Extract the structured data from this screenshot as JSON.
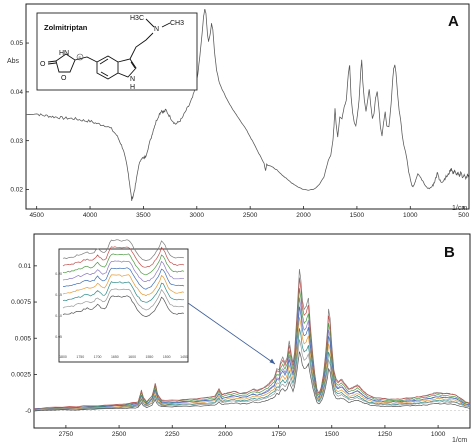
{
  "chart_data": [
    {
      "panel_label": "A",
      "type": "line",
      "ylabel": "Abs",
      "x_unit": "1/cm",
      "x_reversed": true,
      "xlim": [
        4600,
        450
      ],
      "ylim": [
        0.016,
        0.058
      ],
      "x_ticks": [
        4500,
        4000,
        3500,
        3000,
        2500,
        2000,
        1500,
        1000,
        500
      ],
      "y_ticks": [
        0.02,
        0.03,
        0.04,
        0.05
      ],
      "y_tick_labels": [
        "0.02",
        "0.03",
        "0.04",
        "0.05"
      ],
      "inset": {
        "compound_name": "Zolmitriptan",
        "atom_labels": [
          "H3C",
          "N",
          "CH3",
          "O",
          "HN",
          "O",
          "N",
          "H",
          "S"
        ]
      },
      "series": [
        {
          "color": "#555555",
          "points": [
            [
              4600,
              0.0353
            ],
            [
              4500,
              0.0355
            ],
            [
              4450,
              0.0352
            ],
            [
              4400,
              0.0351
            ],
            [
              4350,
              0.0349
            ],
            [
              4300,
              0.0348
            ],
            [
              4250,
              0.0346
            ],
            [
              4200,
              0.0346
            ],
            [
              4150,
              0.0345
            ],
            [
              4100,
              0.0343
            ],
            [
              4050,
              0.0341
            ],
            [
              4000,
              0.034
            ],
            [
              3950,
              0.0336
            ],
            [
              3900,
              0.0333
            ],
            [
              3850,
              0.0331
            ],
            [
              3800,
              0.0324
            ],
            [
              3750,
              0.0311
            ],
            [
              3720,
              0.0298
            ],
            [
              3690,
              0.0283
            ],
            [
              3660,
              0.0254
            ],
            [
              3640,
              0.023
            ],
            [
              3625,
              0.0205
            ],
            [
              3610,
              0.0178
            ],
            [
              3590,
              0.0192
            ],
            [
              3570,
              0.0214
            ],
            [
              3550,
              0.0243
            ],
            [
              3520,
              0.0265
            ],
            [
              3500,
              0.0263
            ],
            [
              3480,
              0.0268
            ],
            [
              3450,
              0.029
            ],
            [
              3420,
              0.0312
            ],
            [
              3400,
              0.0328
            ],
            [
              3380,
              0.034
            ],
            [
              3350,
              0.0355
            ],
            [
              3330,
              0.0362
            ],
            [
              3310,
              0.0358
            ],
            [
              3290,
              0.0363
            ],
            [
              3260,
              0.0352
            ],
            [
              3230,
              0.0342
            ],
            [
              3200,
              0.0334
            ],
            [
              3170,
              0.0338
            ],
            [
              3140,
              0.0345
            ],
            [
              3100,
              0.0362
            ],
            [
              3070,
              0.0373
            ],
            [
              3040,
              0.0388
            ],
            [
              3010,
              0.041
            ],
            [
              2990,
              0.0437
            ],
            [
              2970,
              0.0476
            ],
            [
              2950,
              0.052
            ],
            [
              2935,
              0.0556
            ],
            [
              2925,
              0.057
            ],
            [
              2915,
              0.0561
            ],
            [
              2900,
              0.0518
            ],
            [
              2890,
              0.0503
            ],
            [
              2875,
              0.0517
            ],
            [
              2862,
              0.054
            ],
            [
              2850,
              0.0528
            ],
            [
              2835,
              0.0485
            ],
            [
              2815,
              0.0445
            ],
            [
              2790,
              0.042
            ],
            [
              2760,
              0.0404
            ],
            [
              2720,
              0.0386
            ],
            [
              2680,
              0.037
            ],
            [
              2640,
              0.0356
            ],
            [
              2600,
              0.0343
            ],
            [
              2560,
              0.0331
            ],
            [
              2520,
              0.0316
            ],
            [
              2480,
              0.03
            ],
            [
              2440,
              0.0283
            ],
            [
              2400,
              0.0266
            ],
            [
              2370,
              0.0254
            ],
            [
              2355,
              0.0238
            ],
            [
              2345,
              0.0252
            ],
            [
              2330,
              0.0249
            ],
            [
              2300,
              0.0247
            ],
            [
              2250,
              0.024
            ],
            [
              2200,
              0.023
            ],
            [
              2150,
              0.022
            ],
            [
              2100,
              0.0212
            ],
            [
              2050,
              0.0205
            ],
            [
              2000,
              0.02
            ],
            [
              1950,
              0.0199
            ],
            [
              1900,
              0.0201
            ],
            [
              1850,
              0.0211
            ],
            [
              1810,
              0.0225
            ],
            [
              1785,
              0.0245
            ],
            [
              1765,
              0.0262
            ],
            [
              1745,
              0.027
            ],
            [
              1725,
              0.03
            ],
            [
              1715,
              0.033
            ],
            [
              1705,
              0.0367
            ],
            [
              1695,
              0.0334
            ],
            [
              1680,
              0.0308
            ],
            [
              1660,
              0.0349
            ],
            [
              1640,
              0.0345
            ],
            [
              1620,
              0.0368
            ],
            [
              1600,
              0.0382
            ],
            [
              1580,
              0.0438
            ],
            [
              1568,
              0.0455
            ],
            [
              1555,
              0.0392
            ],
            [
              1540,
              0.0358
            ],
            [
              1525,
              0.0338
            ],
            [
              1510,
              0.033
            ],
            [
              1495,
              0.0352
            ],
            [
              1480,
              0.0384
            ],
            [
              1465,
              0.044
            ],
            [
              1455,
              0.0466
            ],
            [
              1445,
              0.042
            ],
            [
              1430,
              0.0382
            ],
            [
              1415,
              0.036
            ],
            [
              1400,
              0.0382
            ],
            [
              1385,
              0.0406
            ],
            [
              1370,
              0.0372
            ],
            [
              1355,
              0.0345
            ],
            [
              1340,
              0.0356
            ],
            [
              1325,
              0.0388
            ],
            [
              1310,
              0.0401
            ],
            [
              1295,
              0.0369
            ],
            [
              1280,
              0.0328
            ],
            [
              1265,
              0.031
            ],
            [
              1250,
              0.0337
            ],
            [
              1235,
              0.0359
            ],
            [
              1220,
              0.033
            ],
            [
              1200,
              0.0328
            ],
            [
              1180,
              0.0375
            ],
            [
              1165,
              0.0425
            ],
            [
              1155,
              0.0448
            ],
            [
              1145,
              0.0455
            ],
            [
              1135,
              0.0441
            ],
            [
              1120,
              0.0398
            ],
            [
              1105,
              0.0362
            ],
            [
              1090,
              0.0342
            ],
            [
              1075,
              0.031
            ],
            [
              1060,
              0.029
            ],
            [
              1045,
              0.0278
            ],
            [
              1030,
              0.026
            ],
            [
              1015,
              0.0236
            ],
            [
              1005,
              0.0228
            ],
            [
              995,
              0.0216
            ],
            [
              985,
              0.0208
            ],
            [
              975,
              0.0206
            ],
            [
              960,
              0.0212
            ],
            [
              945,
              0.0222
            ],
            [
              930,
              0.0232
            ],
            [
              915,
              0.0228
            ],
            [
              900,
              0.0223
            ],
            [
              880,
              0.0216
            ],
            [
              860,
              0.0208
            ],
            [
              840,
              0.0203
            ],
            [
              820,
              0.0202
            ],
            [
              800,
              0.0205
            ],
            [
              780,
              0.0212
            ],
            [
              760,
              0.0224
            ],
            [
              745,
              0.0237
            ],
            [
              730,
              0.022
            ],
            [
              710,
              0.0216
            ],
            [
              690,
              0.0218
            ],
            [
              670,
              0.0225
            ],
            [
              650,
              0.0228
            ],
            [
              630,
              0.0237
            ],
            [
              615,
              0.0244
            ],
            [
              600,
              0.0232
            ],
            [
              585,
              0.024
            ],
            [
              570,
              0.0229
            ],
            [
              555,
              0.0234
            ],
            [
              540,
              0.0225
            ],
            [
              525,
              0.0238
            ],
            [
              510,
              0.0222
            ],
            [
              495,
              0.0233
            ],
            [
              480,
              0.022
            ],
            [
              465,
              0.023
            ],
            [
              450,
              0.0224
            ]
          ]
        }
      ]
    },
    {
      "panel_label": "B",
      "type": "line",
      "x_unit": "1/cm",
      "x_reversed": true,
      "xlim": [
        2900,
        850
      ],
      "ylim": [
        -0.0012,
        0.0122
      ],
      "x_ticks": [
        2750,
        2500,
        2250,
        2000,
        1750,
        1500,
        1250,
        1000
      ],
      "y_ticks": [
        0,
        0.0025,
        0.005,
        0.0075,
        0.01
      ],
      "y_tick_labels": [
        "-0",
        "0.0025",
        "0.005",
        "0.0075",
        "0.01"
      ],
      "base_curve": [
        [
          2900,
          0.0001
        ],
        [
          2800,
          0.00018
        ],
        [
          2700,
          0.00024
        ],
        [
          2600,
          0.00032
        ],
        [
          2500,
          0.0004
        ],
        [
          2450,
          0.00048
        ],
        [
          2410,
          0.0006
        ],
        [
          2395,
          0.0014
        ],
        [
          2385,
          0.0009
        ],
        [
          2370,
          0.0006
        ],
        [
          2345,
          0.001
        ],
        [
          2330,
          0.0019
        ],
        [
          2318,
          0.0011
        ],
        [
          2300,
          0.0007
        ],
        [
          2250,
          0.0007
        ],
        [
          2200,
          0.00075
        ],
        [
          2150,
          0.0008
        ],
        [
          2100,
          0.00088
        ],
        [
          2050,
          0.001
        ],
        [
          2030,
          0.0015
        ],
        [
          2015,
          0.0011
        ],
        [
          2000,
          0.0012
        ],
        [
          1960,
          0.00135
        ],
        [
          1930,
          0.0012
        ],
        [
          1900,
          0.00125
        ],
        [
          1870,
          0.0015
        ],
        [
          1850,
          0.0014
        ],
        [
          1820,
          0.0016
        ],
        [
          1800,
          0.0018
        ],
        [
          1785,
          0.00205
        ],
        [
          1770,
          0.0023
        ],
        [
          1758,
          0.0029
        ],
        [
          1748,
          0.0028
        ],
        [
          1740,
          0.0034
        ],
        [
          1730,
          0.0037
        ],
        [
          1720,
          0.0033
        ],
        [
          1710,
          0.0037
        ],
        [
          1700,
          0.0048
        ],
        [
          1690,
          0.0039
        ],
        [
          1682,
          0.0033
        ],
        [
          1675,
          0.004
        ],
        [
          1668,
          0.0056
        ],
        [
          1660,
          0.0076
        ],
        [
          1652,
          0.0098
        ],
        [
          1645,
          0.009
        ],
        [
          1638,
          0.0076
        ],
        [
          1630,
          0.007
        ],
        [
          1620,
          0.0072
        ],
        [
          1610,
          0.0078
        ],
        [
          1600,
          0.0058
        ],
        [
          1590,
          0.004
        ],
        [
          1580,
          0.0026
        ],
        [
          1570,
          0.0015
        ],
        [
          1560,
          0.0012
        ],
        [
          1550,
          0.0016
        ],
        [
          1540,
          0.0024
        ],
        [
          1530,
          0.0038
        ],
        [
          1520,
          0.0056
        ],
        [
          1515,
          0.007
        ],
        [
          1508,
          0.0064
        ],
        [
          1500,
          0.0045
        ],
        [
          1490,
          0.0028
        ],
        [
          1480,
          0.0022
        ],
        [
          1470,
          0.002
        ],
        [
          1455,
          0.0022
        ],
        [
          1440,
          0.0019
        ],
        [
          1420,
          0.0015
        ],
        [
          1400,
          0.0016
        ],
        [
          1380,
          0.0018
        ],
        [
          1365,
          0.0016
        ],
        [
          1350,
          0.00135
        ],
        [
          1330,
          0.0011
        ],
        [
          1300,
          0.0009
        ],
        [
          1270,
          0.00085
        ],
        [
          1240,
          0.0008
        ],
        [
          1210,
          0.00078
        ],
        [
          1180,
          0.0008
        ],
        [
          1150,
          0.00085
        ],
        [
          1120,
          0.0009
        ],
        [
          1100,
          0.00095
        ],
        [
          1070,
          0.001
        ],
        [
          1040,
          0.0011
        ],
        [
          1020,
          0.0012
        ],
        [
          1000,
          0.00125
        ],
        [
          980,
          0.0012
        ],
        [
          960,
          0.00118
        ],
        [
          940,
          0.00115
        ],
        [
          920,
          0.0011
        ],
        [
          900,
          0.0009
        ],
        [
          870,
          0.0006
        ],
        [
          850,
          0.0005
        ]
      ],
      "series": [
        {
          "color": "#7b7b7b",
          "scale": 1.0,
          "offset": 0.0
        },
        {
          "color": "#c0504d",
          "scale": 0.93,
          "offset": 6e-05
        },
        {
          "color": "#4f9a45",
          "scale": 0.86,
          "offset": 2e-05
        },
        {
          "color": "#8e7cc3",
          "scale": 0.8,
          "offset": -4e-05
        },
        {
          "color": "#3d6fb6",
          "scale": 0.73,
          "offset": 4e-05
        },
        {
          "color": "#e39b3a",
          "scale": 0.66,
          "offset": 0.0
        },
        {
          "color": "#2e8b8b",
          "scale": 0.58,
          "offset": -2e-05
        },
        {
          "color": "#9a9a9a",
          "scale": 0.5,
          "offset": 0.0
        },
        {
          "color": "#555555",
          "scale": 0.42,
          "offset": -4e-05
        }
      ],
      "inset": {
        "y_tick_labels": [
          "0.20",
          "0.15",
          "0.10",
          "0.05"
        ],
        "x_tick_labels": [
          "1800",
          "1750",
          "1700",
          "1650",
          "1600",
          "1550",
          "1500",
          "1450"
        ]
      }
    }
  ]
}
